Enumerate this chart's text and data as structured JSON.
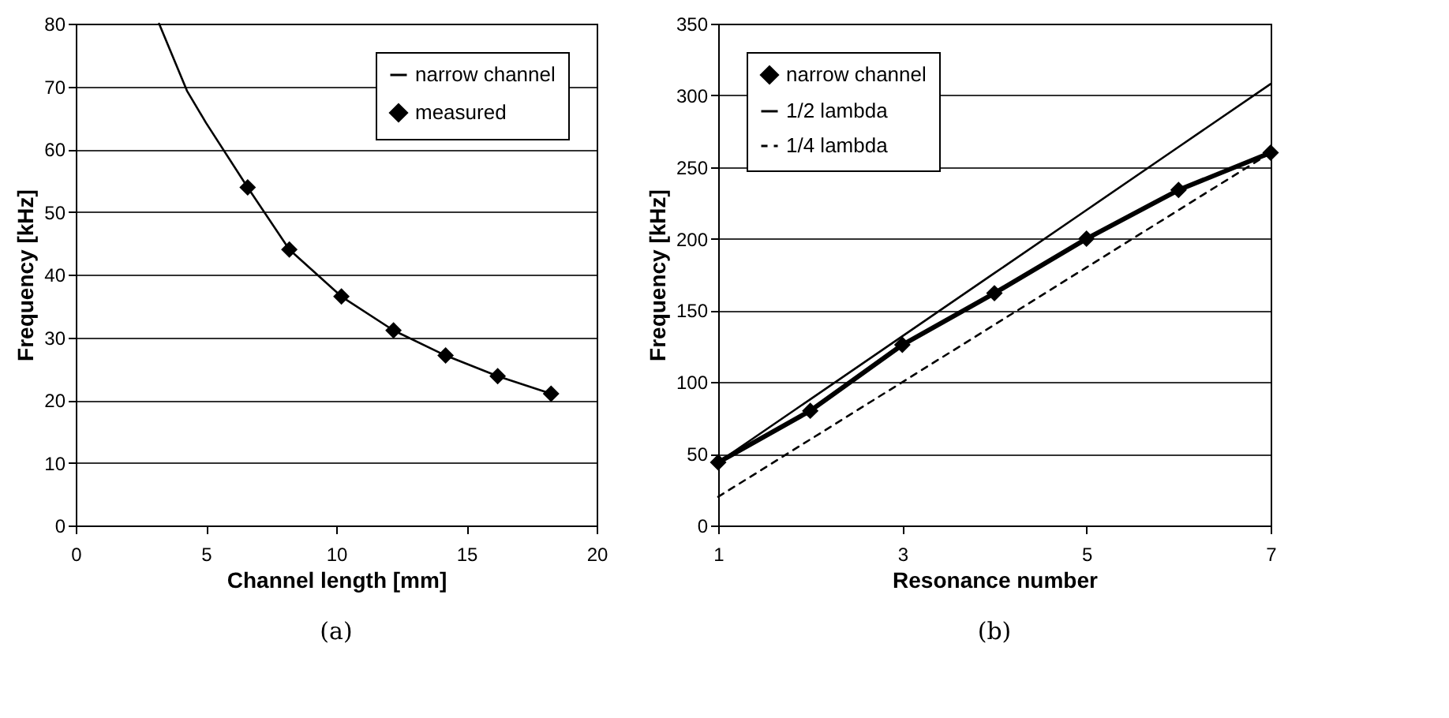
{
  "chart_data": [
    {
      "type": "line",
      "xlabel": "Channel length [mm]",
      "ylabel": "Frequency [kHz]",
      "xlim": [
        0,
        20
      ],
      "xticks": [
        0,
        5,
        10,
        15,
        20
      ],
      "ylim": [
        0,
        80
      ],
      "yticks": [
        0,
        10,
        20,
        30,
        40,
        50,
        60,
        70,
        80
      ],
      "grid": "y",
      "legend": "top right",
      "annotations": [
        "(a)"
      ],
      "series": [
        {
          "name": "narrow channel",
          "color": "#000000",
          "type": "line",
          "line_style": "solid",
          "marker": "none",
          "x": [
            3.2,
            4.27,
            5.0,
            6.6,
            8.2,
            10.2,
            12.2,
            14.2,
            16.2,
            18.25
          ],
          "values": [
            80,
            69.3,
            64.2,
            53.9,
            44.0,
            36.5,
            31.1,
            27.1,
            23.8,
            21.0
          ]
        },
        {
          "name": "measured",
          "color": "#000000",
          "type": "scatter",
          "marker": "diamond",
          "x": [
            6.6,
            8.2,
            10.2,
            12.2,
            14.2,
            16.2,
            18.25
          ],
          "values": [
            53.9,
            44.0,
            36.5,
            31.1,
            27.1,
            23.8,
            21.0
          ]
        }
      ]
    },
    {
      "type": "line",
      "xlabel": "Resonance number",
      "ylabel": "Frequency [kHz]",
      "x": [
        1,
        2,
        3,
        4,
        5,
        6,
        7
      ],
      "xlim": [
        1,
        7
      ],
      "xticks": [
        1,
        3,
        5,
        7
      ],
      "ylim": [
        0,
        350
      ],
      "yticks": [
        0,
        50,
        100,
        150,
        200,
        250,
        300,
        350
      ],
      "grid": "y",
      "legend": "top left",
      "annotations": [
        "(b)"
      ],
      "series": [
        {
          "name": "narrow channel",
          "color": "#000000",
          "line_style": "solid",
          "marker": "diamond",
          "values": [
            44,
            80,
            126,
            162,
            200,
            234,
            260
          ]
        },
        {
          "name": "1/2 lambda",
          "color": "#000000",
          "line_style": "solid",
          "marker": "none",
          "values": [
            44,
            88,
            132,
            176,
            220,
            264,
            308
          ]
        },
        {
          "name": "1/4 lambda",
          "color": "#000000",
          "line_style": "dashed",
          "marker": "none",
          "values": [
            20,
            60,
            100,
            140,
            180,
            220,
            260
          ]
        }
      ]
    }
  ]
}
